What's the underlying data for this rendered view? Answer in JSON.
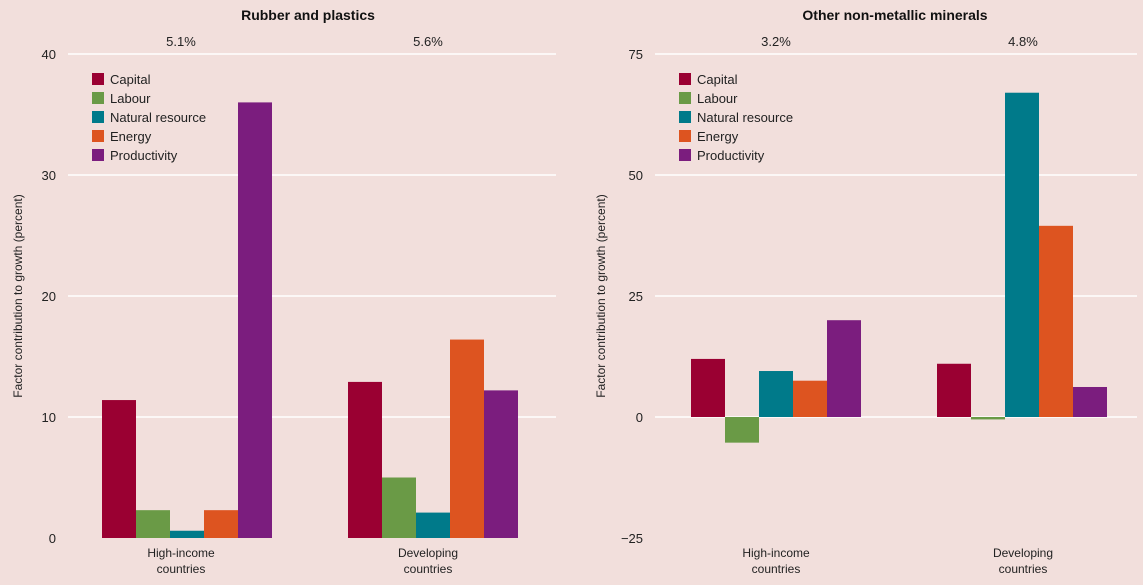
{
  "chart_data": [
    {
      "type": "bar",
      "title": "Rubber and plastics",
      "ylabel": "Factor contribution to growth (percent)",
      "ylim": [
        0,
        40
      ],
      "yticks": [
        0,
        10,
        20,
        30,
        40
      ],
      "categories": [
        "High-income\ncountries",
        "Developing\ncountries"
      ],
      "annotations": [
        "5.1%",
        "5.6%"
      ],
      "legend": "top-left",
      "grid": true,
      "series": [
        {
          "name": "Capital",
          "color": "#9a0032",
          "values": [
            11.4,
            12.9
          ]
        },
        {
          "name": "Labour",
          "color": "#6a9a46",
          "values": [
            2.3,
            5.0
          ]
        },
        {
          "name": "Natural resource",
          "color": "#007a8a",
          "values": [
            0.6,
            2.1
          ]
        },
        {
          "name": "Energy",
          "color": "#dd5420",
          "values": [
            2.3,
            16.4
          ]
        },
        {
          "name": "Productivity",
          "color": "#7b1d7e",
          "values": [
            36.0,
            12.2
          ]
        }
      ]
    },
    {
      "type": "bar",
      "title": "Other non-metallic minerals",
      "ylabel": "Factor contribution to growth (percent)",
      "ylim": [
        -25,
        75
      ],
      "yticks": [
        -25,
        0,
        25,
        50,
        75
      ],
      "categories": [
        "High-income\ncountries",
        "Developing\ncountries"
      ],
      "annotations": [
        "3.2%",
        "4.8%"
      ],
      "legend": "top-left",
      "grid": true,
      "series": [
        {
          "name": "Capital",
          "color": "#9a0032",
          "values": [
            12.0,
            11.0
          ]
        },
        {
          "name": "Labour",
          "color": "#6a9a46",
          "values": [
            -5.3,
            -0.5
          ]
        },
        {
          "name": "Natural resource",
          "color": "#007a8a",
          "values": [
            9.5,
            67.0
          ]
        },
        {
          "name": "Energy",
          "color": "#dd5420",
          "values": [
            7.5,
            39.5
          ]
        },
        {
          "name": "Productivity",
          "color": "#7b1d7e",
          "values": [
            20.0,
            6.2
          ]
        }
      ]
    }
  ]
}
